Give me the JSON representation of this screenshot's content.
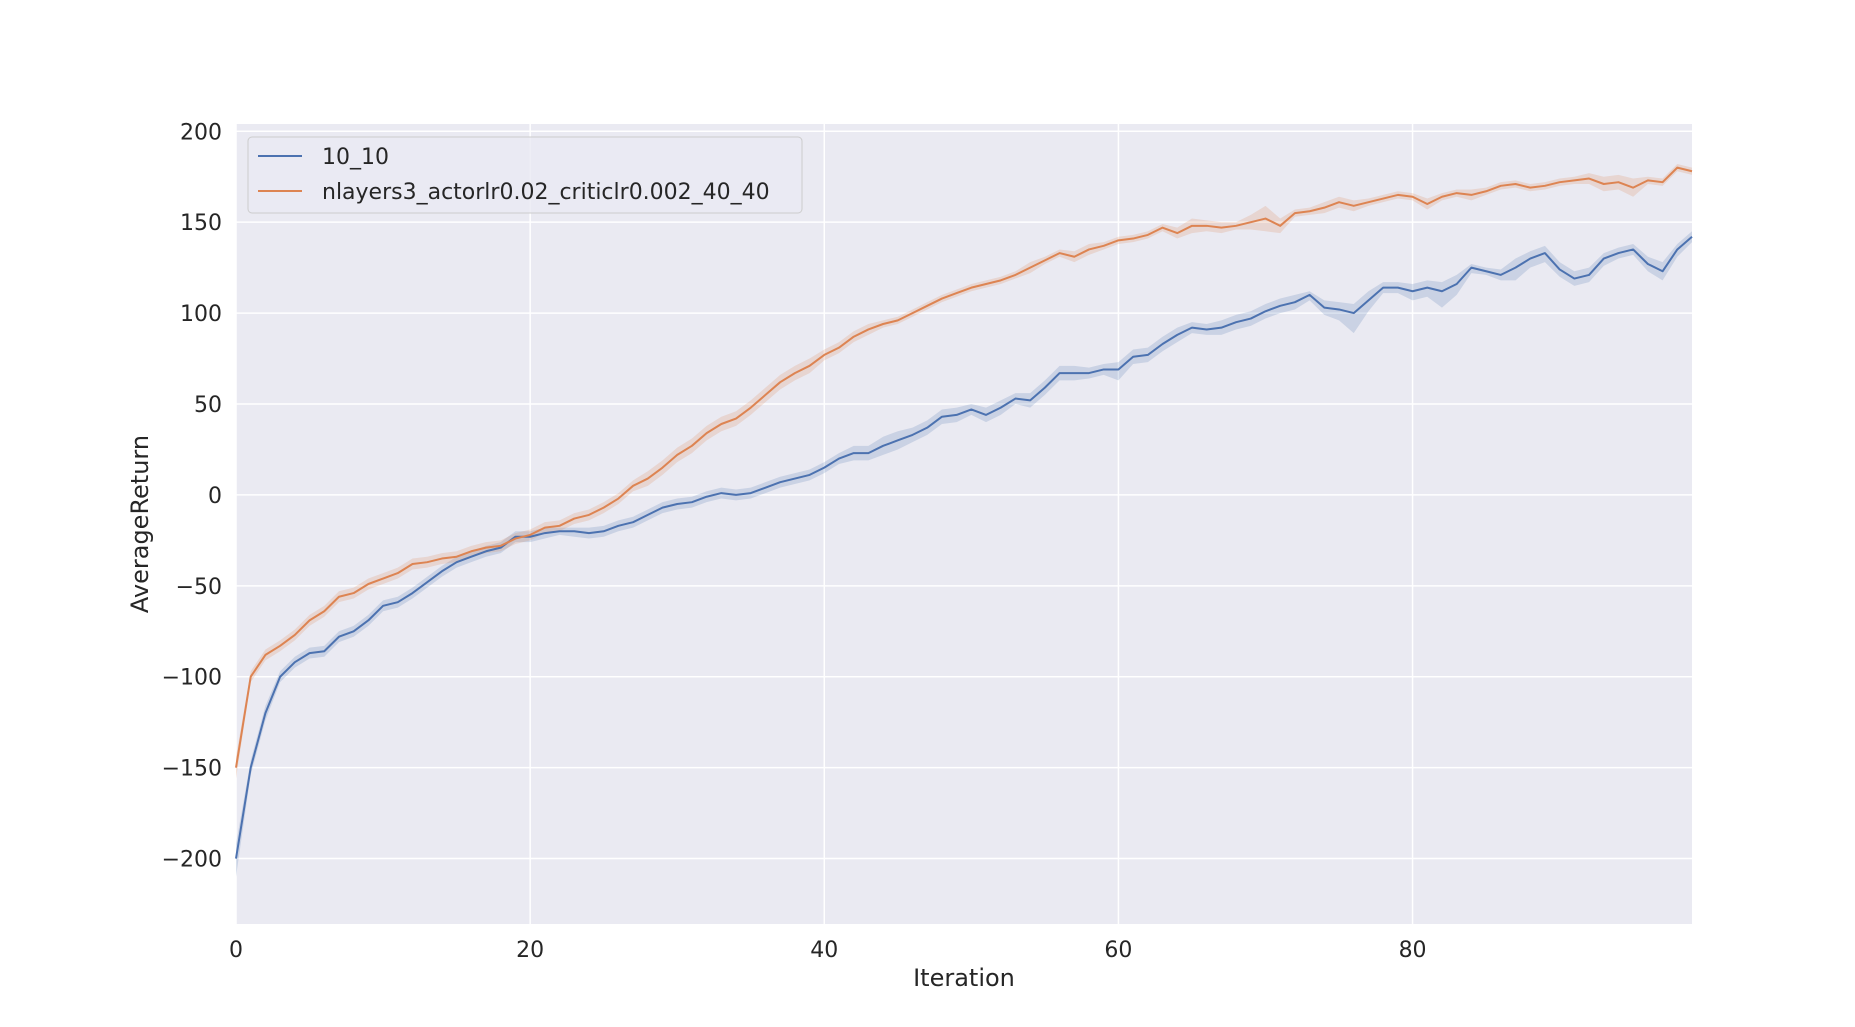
{
  "chart_data": {
    "type": "line",
    "title": "",
    "xlabel": "Iteration",
    "ylabel": "AverageReturn",
    "xlim": [
      0,
      99
    ],
    "ylim": [
      -236,
      204
    ],
    "xticks": [
      0,
      20,
      40,
      60,
      80
    ],
    "xtick_labels": [
      "0",
      "20",
      "40",
      "60",
      "80"
    ],
    "yticks": [
      -200,
      -150,
      -100,
      -50,
      0,
      50,
      100,
      150,
      200
    ],
    "ytick_labels": [
      "−200",
      "−150",
      "−100",
      "−50",
      "0",
      "50",
      "100",
      "150",
      "200"
    ],
    "grid": true,
    "legend_position": "top-left",
    "background": "#eaeaf2",
    "x": [
      0,
      1,
      2,
      3,
      4,
      5,
      6,
      7,
      8,
      9,
      10,
      11,
      12,
      13,
      14,
      15,
      16,
      17,
      18,
      19,
      20,
      21,
      22,
      23,
      24,
      25,
      26,
      27,
      28,
      29,
      30,
      31,
      32,
      33,
      34,
      35,
      36,
      37,
      38,
      39,
      40,
      41,
      42,
      43,
      44,
      45,
      46,
      47,
      48,
      49,
      50,
      51,
      52,
      53,
      54,
      55,
      56,
      57,
      58,
      59,
      60,
      61,
      62,
      63,
      64,
      65,
      66,
      67,
      68,
      69,
      70,
      71,
      72,
      73,
      74,
      75,
      76,
      77,
      78,
      79,
      80,
      81,
      82,
      83,
      84,
      85,
      86,
      87,
      88,
      89,
      90,
      91,
      92,
      93,
      94,
      95,
      96,
      97,
      98,
      99
    ],
    "series": [
      {
        "name": "10_10",
        "color": "#4c72b0",
        "values": [
          -200,
          -150,
          -120,
          -100,
          -92,
          -87,
          -86,
          -78,
          -75,
          -69,
          -61,
          -59,
          -54,
          -48,
          -42,
          -37,
          -34,
          -31,
          -29,
          -23,
          -23,
          -21,
          -20,
          -20,
          -21,
          -20,
          -17,
          -15,
          -11,
          -7,
          -5,
          -4,
          -1,
          1,
          0,
          1,
          4,
          7,
          9,
          11,
          15,
          20,
          23,
          23,
          27,
          30,
          33,
          37,
          43,
          44,
          47,
          44,
          48,
          53,
          52,
          59,
          67,
          67,
          67,
          69,
          69,
          76,
          77,
          83,
          88,
          92,
          91,
          92,
          95,
          97,
          101,
          104,
          106,
          110,
          103,
          102,
          100,
          107,
          114,
          114,
          112,
          114,
          112,
          116,
          125,
          123,
          121,
          125,
          130,
          133,
          124,
          119,
          121,
          130,
          133,
          135,
          127,
          123,
          135,
          142
        ],
        "band_upper": [
          -192,
          -146,
          -116,
          -97,
          -89,
          -84,
          -83,
          -75,
          -72,
          -66,
          -58,
          -56,
          -51,
          -45,
          -39,
          -34,
          -31,
          -28,
          -26,
          -20,
          -20,
          -18,
          -18,
          -18,
          -18,
          -17,
          -14,
          -12,
          -8,
          -4,
          -2,
          -1,
          2,
          4,
          3,
          4,
          7,
          10,
          12,
          14,
          18,
          23,
          27,
          27,
          32,
          35,
          37,
          41,
          47,
          48,
          50,
          48,
          52,
          56,
          56,
          63,
          71,
          71,
          70,
          72,
          73,
          80,
          81,
          87,
          92,
          95,
          94,
          96,
          99,
          101,
          105,
          108,
          110,
          112,
          107,
          106,
          105,
          112,
          117,
          117,
          116,
          118,
          117,
          121,
          127,
          125,
          124,
          130,
          134,
          137,
          128,
          123,
          125,
          133,
          136,
          138,
          131,
          128,
          138,
          145
        ],
        "band_lower": [
          -210,
          -154,
          -124,
          -103,
          -95,
          -90,
          -89,
          -81,
          -78,
          -72,
          -64,
          -62,
          -57,
          -51,
          -45,
          -40,
          -37,
          -34,
          -32,
          -26,
          -26,
          -24,
          -22,
          -23,
          -24,
          -23,
          -20,
          -18,
          -14,
          -10,
          -8,
          -7,
          -4,
          -2,
          -3,
          -2,
          1,
          4,
          6,
          8,
          12,
          17,
          19,
          19,
          22,
          25,
          29,
          33,
          39,
          40,
          44,
          40,
          44,
          50,
          48,
          55,
          63,
          63,
          64,
          66,
          63,
          72,
          73,
          79,
          84,
          89,
          88,
          88,
          91,
          93,
          97,
          100,
          102,
          107,
          99,
          96,
          89,
          101,
          111,
          111,
          107,
          109,
          103,
          110,
          122,
          121,
          118,
          118,
          125,
          128,
          120,
          115,
          117,
          126,
          130,
          132,
          123,
          118,
          131,
          139
        ]
      },
      {
        "name": "nlayers3_actorlr0.02_criticlr0.002_40_40",
        "color": "#dd8452",
        "values": [
          -150,
          -100,
          -88,
          -83,
          -77,
          -69,
          -64,
          -56,
          -54,
          -49,
          -46,
          -43,
          -38,
          -37,
          -35,
          -34,
          -31,
          -29,
          -28,
          -24,
          -22,
          -18,
          -17,
          -13,
          -11,
          -7,
          -2,
          5,
          9,
          15,
          22,
          27,
          34,
          39,
          42,
          48,
          55,
          62,
          67,
          71,
          77,
          81,
          87,
          91,
          94,
          96,
          100,
          104,
          108,
          111,
          114,
          116,
          118,
          121,
          125,
          129,
          133,
          131,
          135,
          137,
          140,
          141,
          143,
          147,
          144,
          148,
          148,
          147,
          148,
          150,
          152,
          148,
          155,
          156,
          158,
          161,
          159,
          161,
          163,
          165,
          164,
          160,
          164,
          166,
          165,
          167,
          170,
          171,
          169,
          170,
          172,
          173,
          174,
          171,
          172,
          169,
          173,
          172,
          180,
          178
        ],
        "band_upper": [
          -144,
          -97,
          -85,
          -80,
          -74,
          -66,
          -61,
          -53,
          -51,
          -46,
          -43,
          -40,
          -35,
          -34,
          -32,
          -31,
          -28,
          -26,
          -25,
          -21,
          -19,
          -15,
          -14,
          -10,
          -8,
          -4,
          1,
          8,
          13,
          19,
          26,
          31,
          38,
          43,
          46,
          52,
          59,
          66,
          71,
          75,
          80,
          84,
          90,
          94,
          96,
          98,
          102,
          106,
          110,
          113,
          116,
          118,
          120,
          123,
          128,
          131,
          135,
          134,
          138,
          139,
          142,
          143,
          145,
          149,
          147,
          152,
          151,
          150,
          150,
          154,
          159,
          152,
          157,
          158,
          161,
          164,
          162,
          163,
          165,
          167,
          166,
          163,
          166,
          168,
          168,
          169,
          172,
          173,
          171,
          172,
          174,
          175,
          177,
          175,
          176,
          174,
          175,
          174,
          182,
          180
        ],
        "band_lower": [
          -156,
          -103,
          -91,
          -86,
          -80,
          -72,
          -67,
          -59,
          -57,
          -52,
          -49,
          -46,
          -41,
          -40,
          -38,
          -37,
          -34,
          -32,
          -31,
          -27,
          -25,
          -21,
          -20,
          -16,
          -14,
          -10,
          -5,
          2,
          5,
          11,
          18,
          23,
          30,
          35,
          38,
          44,
          51,
          58,
          63,
          67,
          74,
          78,
          84,
          88,
          92,
          94,
          98,
          102,
          106,
          109,
          112,
          114,
          116,
          119,
          122,
          127,
          131,
          128,
          132,
          135,
          138,
          139,
          141,
          145,
          141,
          144,
          145,
          144,
          146,
          146,
          145,
          144,
          153,
          154,
          155,
          158,
          156,
          159,
          161,
          163,
          162,
          157,
          162,
          164,
          162,
          165,
          168,
          169,
          167,
          168,
          170,
          171,
          171,
          167,
          168,
          164,
          171,
          170,
          178,
          176
        ]
      }
    ]
  }
}
